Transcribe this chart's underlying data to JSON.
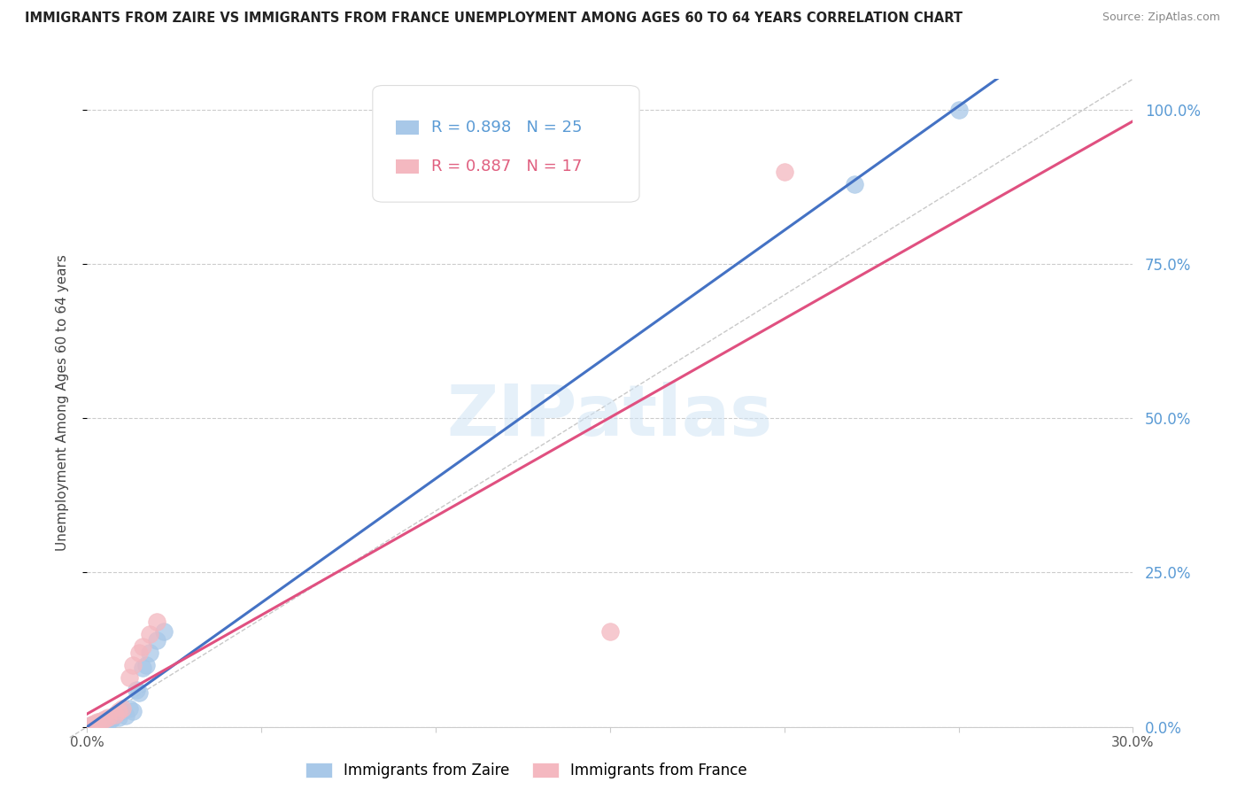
{
  "title": "IMMIGRANTS FROM ZAIRE VS IMMIGRANTS FROM FRANCE UNEMPLOYMENT AMONG AGES 60 TO 64 YEARS CORRELATION CHART",
  "source": "Source: ZipAtlas.com",
  "ylabel": "Unemployment Among Ages 60 to 64 years",
  "xlim": [
    0.0,
    0.3
  ],
  "ylim": [
    0.0,
    1.05
  ],
  "xticks": [
    0.0,
    0.05,
    0.1,
    0.15,
    0.2,
    0.25,
    0.3
  ],
  "yticks": [
    0.0,
    0.25,
    0.5,
    0.75,
    1.0
  ],
  "legend_entries": [
    "Immigrants from Zaire",
    "Immigrants from France"
  ],
  "R_zaire": 0.898,
  "N_zaire": 25,
  "R_france": 0.887,
  "N_france": 17,
  "zaire_color": "#a8c8e8",
  "france_color": "#f4b8c0",
  "zaire_line_color": "#4472c4",
  "france_line_color": "#e05080",
  "background_color": "#ffffff",
  "watermark_text": "ZIPatlas",
  "ref_line_color": "#bbbbbb",
  "zaire_x": [
    0.001,
    0.002,
    0.003,
    0.004,
    0.004,
    0.005,
    0.005,
    0.006,
    0.007,
    0.007,
    0.008,
    0.009,
    0.01,
    0.011,
    0.012,
    0.013,
    0.014,
    0.015,
    0.016,
    0.017,
    0.018,
    0.02,
    0.022,
    0.22,
    0.25
  ],
  "zaire_y": [
    0.002,
    0.003,
    0.005,
    0.005,
    0.008,
    0.006,
    0.01,
    0.008,
    0.012,
    0.015,
    0.02,
    0.015,
    0.025,
    0.018,
    0.03,
    0.025,
    0.06,
    0.055,
    0.095,
    0.1,
    0.12,
    0.14,
    0.155,
    0.88,
    1.0
  ],
  "france_x": [
    0.001,
    0.002,
    0.003,
    0.004,
    0.005,
    0.006,
    0.008,
    0.009,
    0.01,
    0.012,
    0.013,
    0.015,
    0.016,
    0.018,
    0.02,
    0.15,
    0.2
  ],
  "france_y": [
    0.002,
    0.005,
    0.008,
    0.01,
    0.012,
    0.015,
    0.02,
    0.025,
    0.03,
    0.08,
    0.1,
    0.12,
    0.13,
    0.15,
    0.17,
    0.155,
    0.9
  ]
}
